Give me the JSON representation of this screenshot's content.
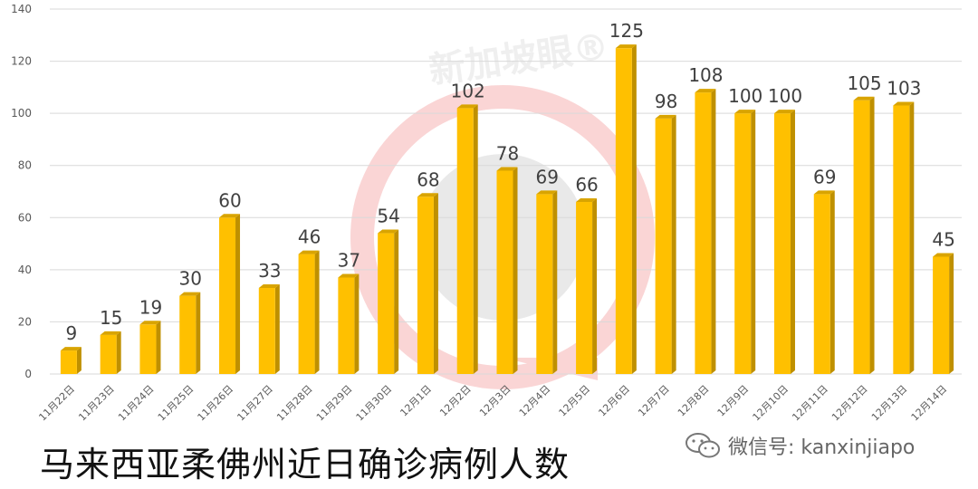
{
  "chart_data": {
    "type": "bar",
    "title": "马来西亚柔佛州近日确诊病例人数",
    "categories": [
      "11月22日",
      "11月23日",
      "11月24日",
      "11月25日",
      "11月26日",
      "11月27日",
      "11月28日",
      "11月29日",
      "11月30日",
      "12月1日",
      "12月2日",
      "12月3日",
      "12月4日",
      "12月5日",
      "12月6日",
      "12月7日",
      "12月8日",
      "12月9日",
      "12月10日",
      "12月11日",
      "12月12日",
      "12月13日",
      "12月14日"
    ],
    "values": [
      9,
      15,
      19,
      30,
      60,
      33,
      46,
      37,
      54,
      68,
      102,
      78,
      69,
      66,
      125,
      98,
      108,
      100,
      100,
      69,
      105,
      103,
      45
    ],
    "yticks": [
      0,
      20,
      40,
      60,
      80,
      100,
      120,
      140
    ],
    "ylim": [
      0,
      140
    ],
    "grid": true,
    "data_labels": true,
    "bar_color": "#FFC000",
    "bar_side_color": "#BF9000",
    "bar_top_color": "#D9A400"
  },
  "watermark": {
    "text": "新加坡眼®",
    "color": "#f4a8a8"
  },
  "credit": {
    "text": "微信号: kanxinjiapo",
    "icon": "wechat-icon"
  }
}
